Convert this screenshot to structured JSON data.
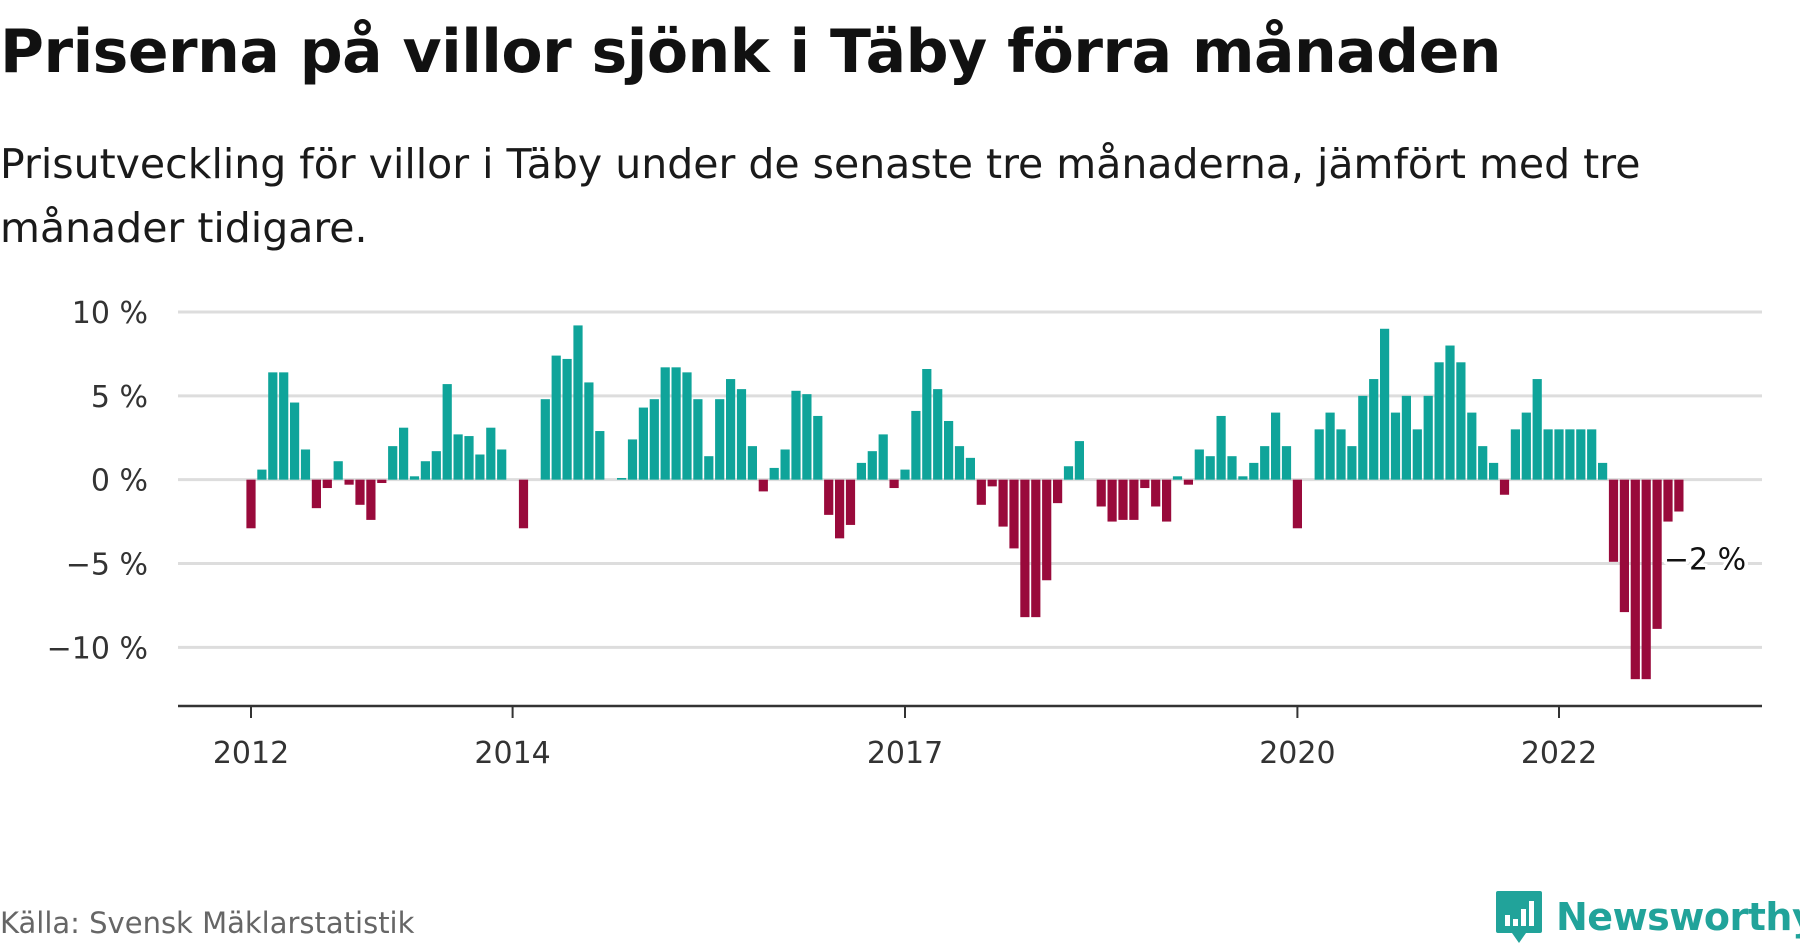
{
  "header": {
    "title": "Priserna på villor sjönk i Täby förra månaden",
    "subtitle": "Prisutveckling för villor i Täby under de senaste tre månaderna, jämfört med tre månader tidigare."
  },
  "footer": {
    "source": "Källa: Svensk Mäklarstatistik",
    "brand": "Newsworthy"
  },
  "colors": {
    "positive": "#0fa49a",
    "negative": "#990a3b",
    "grid": "#dddddd",
    "axis": "#333333",
    "brand": "#21a39a"
  },
  "chart_data": {
    "type": "bar",
    "title": "Priserna på villor sjönk i Täby förra månaden",
    "subtitle": "Prisutveckling för villor i Täby under de senaste tre månaderna, jämfört med tre månader tidigare.",
    "unit": "%",
    "ylim": [
      -13.5,
      10
    ],
    "yticks": [
      10,
      5,
      0,
      -5,
      -10
    ],
    "ytick_labels": [
      "10 %",
      "5 %",
      "0 %",
      "−5 %",
      "−10 %"
    ],
    "xticks": [
      {
        "label": "2012",
        "index": 0
      },
      {
        "label": "2014",
        "index": 24
      },
      {
        "label": "2017",
        "index": 60
      },
      {
        "label": "2020",
        "index": 96
      },
      {
        "label": "2022",
        "index": 120
      }
    ],
    "grid": true,
    "legend": "none",
    "annotation": {
      "text": "−2 %",
      "index": 131
    },
    "series": [
      {
        "values": [
          -2.9,
          0.6,
          6.4,
          6.4,
          4.6,
          1.8,
          -1.7,
          -0.5,
          1.1,
          -0.3,
          -1.5,
          -2.4,
          -0.2,
          2.0,
          3.1,
          0.2,
          1.1,
          1.7,
          5.7,
          2.7,
          2.6,
          1.5,
          3.1,
          1.8,
          0.0,
          -2.9,
          0.0,
          4.8,
          7.4,
          7.2,
          9.2,
          5.8,
          2.9,
          0.0,
          0.1,
          2.4,
          4.3,
          4.8,
          6.7,
          6.7,
          6.4,
          4.8,
          1.4,
          4.8,
          6.0,
          5.4,
          2.0,
          -0.7,
          0.7,
          1.8,
          5.3,
          5.1,
          3.8,
          -2.1,
          -3.5,
          -2.7,
          1.0,
          1.7,
          2.7,
          -0.5,
          0.6,
          4.1,
          6.6,
          5.4,
          3.5,
          2.0,
          1.3,
          -1.5,
          -0.4,
          -2.8,
          -4.1,
          -8.2,
          -8.2,
          -6.0,
          -1.4,
          0.8,
          2.3,
          0.0,
          -1.6,
          -2.5,
          -2.4,
          -2.4,
          -0.5,
          -1.6,
          -2.5,
          0.2,
          -0.3,
          1.8,
          1.4,
          3.8,
          1.4,
          0.2,
          1.0,
          2.0,
          4.0,
          2.0,
          -2.9,
          0.0,
          3.0,
          4.0,
          3.0,
          2.0,
          5.0,
          6.0,
          9.0,
          4.0,
          5.0,
          3.0,
          5.0,
          7.0,
          8.0,
          7.0,
          4.0,
          2.0,
          1.0,
          -0.9,
          3.0,
          4.0,
          6.0,
          3.0,
          3.0,
          3.0,
          3.0,
          3.0,
          1.0,
          -4.9,
          -7.9,
          -11.9,
          -11.9,
          -8.9,
          -2.5,
          -1.9
        ]
      }
    ]
  }
}
